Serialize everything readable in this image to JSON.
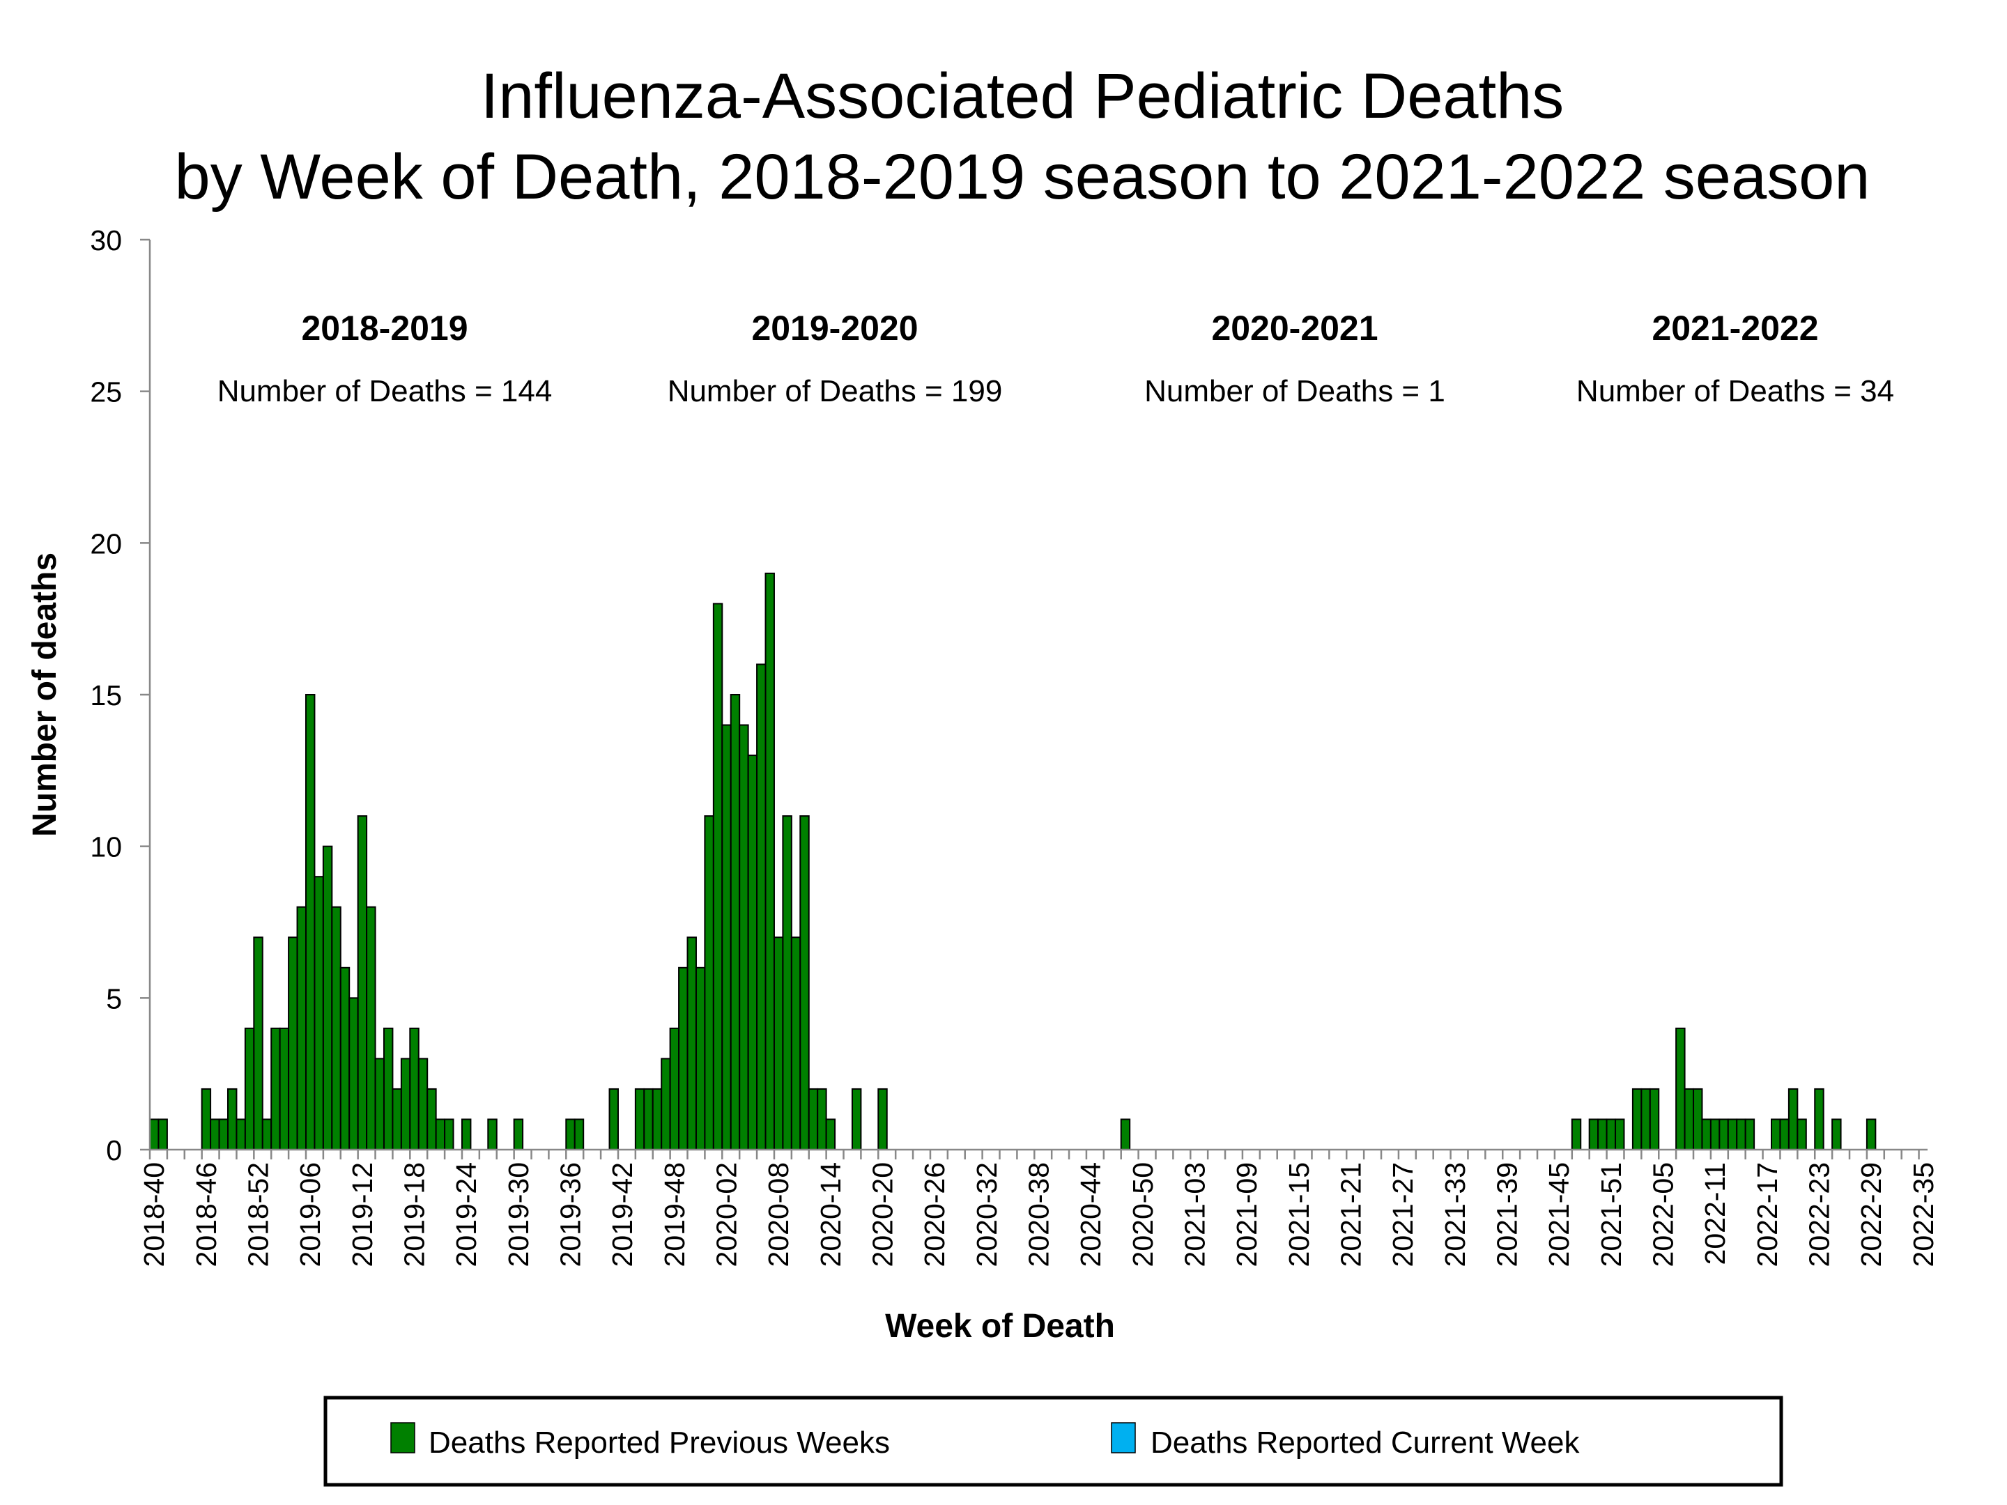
{
  "chart_data": {
    "type": "bar",
    "title_line1": "Influenza-Associated Pediatric Deaths",
    "title_line2": "by Week of Death, 2018-2019 season to 2021-2022 season",
    "xlabel": "Week of Death",
    "ylabel": "Number of deaths",
    "ylim": [
      0,
      30
    ],
    "y_ticks": [
      "0",
      "5",
      "10",
      "15",
      "20",
      "25",
      "30"
    ],
    "x_range": [
      "2018-40",
      "2022-35"
    ],
    "x_tick_label_every_weeks": 6,
    "grid": false,
    "legend_position": "bottom",
    "seasons": [
      {
        "label": "2018-2019",
        "count_text": "Number of Deaths = 144"
      },
      {
        "label": "2019-2020",
        "count_text": "Number of Deaths = 199"
      },
      {
        "label": "2020-2021",
        "count_text": "Number of Deaths = 1"
      },
      {
        "label": "2021-2022",
        "count_text": "Number of Deaths = 34"
      }
    ],
    "legend": [
      {
        "label": "Deaths Reported Previous Weeks",
        "color": "#008000"
      },
      {
        "label": "Deaths Reported Current Week",
        "color": "#00b0f0"
      }
    ],
    "weeks_by_year": {
      "2018": [
        40,
        52
      ],
      "2019": [
        1,
        52
      ],
      "2020": [
        1,
        53
      ],
      "2021": [
        1,
        52
      ],
      "2022": [
        1,
        35
      ]
    },
    "series": [
      {
        "name": "Deaths Reported Previous Weeks",
        "color": "#008000",
        "values": [
          1,
          1,
          0,
          0,
          0,
          0,
          2,
          1,
          1,
          2,
          1,
          4,
          7,
          1,
          4,
          4,
          7,
          8,
          15,
          9,
          10,
          8,
          6,
          5,
          11,
          8,
          3,
          4,
          2,
          3,
          4,
          3,
          2,
          1,
          1,
          0,
          1,
          0,
          0,
          1,
          0,
          0,
          1,
          0,
          0,
          0,
          0,
          0,
          1,
          1,
          0,
          0,
          0,
          2,
          0,
          0,
          2,
          2,
          2,
          3,
          4,
          6,
          7,
          6,
          11,
          18,
          14,
          15,
          14,
          13,
          16,
          19,
          7,
          11,
          7,
          11,
          2,
          2,
          1,
          0,
          0,
          2,
          0,
          0,
          2,
          0,
          0,
          0,
          0,
          0,
          0,
          0,
          0,
          0,
          0,
          0,
          0,
          0,
          0,
          0,
          0,
          0,
          0,
          0,
          0,
          0,
          0,
          0,
          0,
          0,
          0,
          0,
          1,
          0,
          0,
          0,
          0,
          0,
          0,
          0,
          0,
          0,
          0,
          0,
          0,
          0,
          0,
          0,
          0,
          0,
          0,
          0,
          0,
          0,
          0,
          0,
          0,
          0,
          0,
          0,
          0,
          0,
          0,
          0,
          0,
          0,
          0,
          0,
          0,
          0,
          0,
          0,
          0,
          0,
          0,
          0,
          0,
          0,
          0,
          0,
          0,
          0,
          0,
          0,
          1,
          0,
          1,
          1,
          1,
          1,
          0,
          2,
          2,
          2,
          0,
          0,
          4,
          2,
          2,
          1,
          1,
          1,
          1,
          1,
          1,
          0,
          0,
          1,
          1,
          2,
          1,
          0,
          2,
          0,
          1,
          0,
          0,
          0,
          1,
          0,
          0,
          0,
          0,
          0,
          0
        ]
      },
      {
        "name": "Deaths Reported Current Week",
        "color": "#00b0f0",
        "values": []
      }
    ]
  }
}
